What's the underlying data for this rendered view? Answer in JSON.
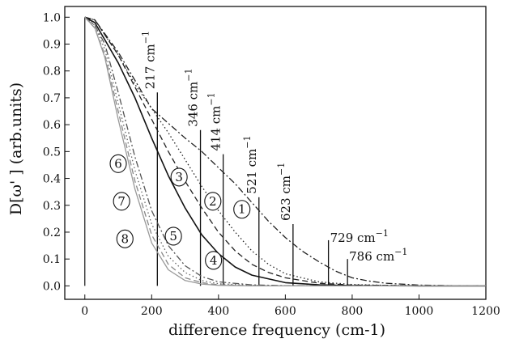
{
  "chart_data": {
    "type": "line",
    "xlabel": "difference frequency (cm-1)",
    "ylabel": "D[ω' ] (arb.units)",
    "xlim": [
      -60,
      1200
    ],
    "ylim": [
      -0.05,
      1.04
    ],
    "xticks": [
      0,
      200,
      400,
      600,
      800,
      1000,
      1200
    ],
    "yticks": [
      0.0,
      0.1,
      0.2,
      0.3,
      0.4,
      0.5,
      0.6,
      0.7,
      0.8,
      0.9,
      1.0
    ],
    "grid": false,
    "series": [
      {
        "name": "1",
        "style": "dash-dot",
        "color": "#222222",
        "x": [
          0,
          30,
          100,
          200,
          300,
          350,
          400,
          450,
          500,
          550,
          600,
          650,
          700,
          750,
          800,
          850,
          900,
          1000,
          1100,
          1200
        ],
        "y": [
          1.0,
          0.99,
          0.87,
          0.66,
          0.55,
          0.5,
          0.44,
          0.38,
          0.31,
          0.24,
          0.18,
          0.13,
          0.09,
          0.055,
          0.03,
          0.018,
          0.01,
          0.003,
          0.001,
          0.0
        ]
      },
      {
        "name": "2",
        "style": "dotted",
        "color": "#222222",
        "x": [
          0,
          30,
          100,
          150,
          200,
          250,
          300,
          350,
          400,
          450,
          500,
          550,
          600,
          700,
          800,
          900,
          1000,
          1200
        ],
        "y": [
          1.0,
          0.99,
          0.86,
          0.75,
          0.66,
          0.57,
          0.47,
          0.37,
          0.28,
          0.2,
          0.13,
          0.08,
          0.045,
          0.015,
          0.005,
          0.002,
          0.001,
          0.0
        ]
      },
      {
        "name": "3",
        "style": "dashed",
        "color": "#222222",
        "x": [
          0,
          30,
          100,
          150,
          200,
          250,
          300,
          350,
          400,
          450,
          500,
          550,
          600,
          700,
          800,
          1000,
          1200
        ],
        "y": [
          1.0,
          0.99,
          0.86,
          0.74,
          0.62,
          0.5,
          0.39,
          0.29,
          0.2,
          0.13,
          0.08,
          0.05,
          0.03,
          0.01,
          0.003,
          0.001,
          0.0
        ]
      },
      {
        "name": "4",
        "style": "solid",
        "color": "#111111",
        "x": [
          0,
          30,
          100,
          150,
          200,
          250,
          300,
          350,
          400,
          450,
          500,
          600,
          700,
          800,
          1000,
          1200
        ],
        "y": [
          1.0,
          0.98,
          0.83,
          0.7,
          0.55,
          0.41,
          0.29,
          0.19,
          0.12,
          0.07,
          0.04,
          0.012,
          0.004,
          0.001,
          0.0,
          0.0
        ]
      },
      {
        "name": "5",
        "style": "dash-dot",
        "color": "#555555",
        "x": [
          0,
          30,
          60,
          100,
          150,
          200,
          250,
          300,
          350,
          400,
          500,
          600,
          800,
          1200
        ],
        "y": [
          1.0,
          0.97,
          0.9,
          0.72,
          0.48,
          0.28,
          0.15,
          0.075,
          0.035,
          0.015,
          0.004,
          0.001,
          0.0,
          0.0
        ]
      },
      {
        "name": "6",
        "style": "dotted",
        "color": "#666666",
        "x": [
          0,
          30,
          60,
          100,
          150,
          200,
          250,
          300,
          350,
          400,
          500,
          600,
          800,
          1200
        ],
        "y": [
          1.0,
          0.97,
          0.88,
          0.68,
          0.43,
          0.23,
          0.11,
          0.05,
          0.02,
          0.008,
          0.002,
          0.0,
          0.0,
          0.0
        ]
      },
      {
        "name": "7",
        "style": "dashed",
        "color": "#888888",
        "x": [
          0,
          30,
          60,
          100,
          150,
          200,
          250,
          300,
          350,
          400,
          500,
          600,
          800,
          1200
        ],
        "y": [
          1.0,
          0.96,
          0.86,
          0.65,
          0.39,
          0.19,
          0.08,
          0.03,
          0.012,
          0.004,
          0.001,
          0.0,
          0.0,
          0.0
        ]
      },
      {
        "name": "8",
        "style": "solid",
        "color": "#999999",
        "x": [
          0,
          30,
          60,
          100,
          150,
          200,
          250,
          300,
          350,
          400,
          500,
          600,
          800,
          1200
        ],
        "y": [
          1.0,
          0.96,
          0.85,
          0.62,
          0.36,
          0.16,
          0.06,
          0.02,
          0.007,
          0.002,
          0.0,
          0.0,
          0.0,
          0.0
        ]
      }
    ],
    "frequency_markers": [
      {
        "x": 217,
        "top": 0.72,
        "label": "217 cm",
        "superscript": "−1"
      },
      {
        "x": 346,
        "top": 0.58,
        "label": "346 cm",
        "superscript": "−1"
      },
      {
        "x": 414,
        "top": 0.49,
        "label": "414 cm",
        "superscript": "−1"
      },
      {
        "x": 521,
        "top": 0.33,
        "label": "521 cm",
        "superscript": "−1"
      },
      {
        "x": 623,
        "top": 0.23,
        "label": "623 cm",
        "superscript": "−1"
      },
      {
        "x": 729,
        "top": 0.17,
        "label": "729 cm",
        "superscript": "−1"
      },
      {
        "x": 786,
        "top": 0.1,
        "label": "786 cm",
        "superscript": "−1"
      }
    ],
    "curve_labels": [
      {
        "text": "1",
        "x": 470,
        "y": 0.285
      },
      {
        "text": "2",
        "x": 383,
        "y": 0.315
      },
      {
        "text": "3",
        "x": 282,
        "y": 0.405
      },
      {
        "text": "4",
        "x": 385,
        "y": 0.095
      },
      {
        "text": "5",
        "x": 265,
        "y": 0.185
      },
      {
        "text": "6",
        "x": 100,
        "y": 0.455
      },
      {
        "text": "7",
        "x": 110,
        "y": 0.315
      },
      {
        "text": "8",
        "x": 120,
        "y": 0.175
      }
    ]
  }
}
